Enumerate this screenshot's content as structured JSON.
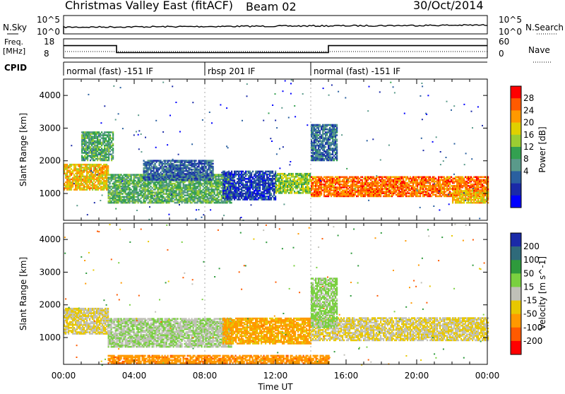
{
  "header": {
    "title": "Christmas Valley East (fitACF)",
    "beam": "Beam 02",
    "date": "30/Oct/2014"
  },
  "strips": {
    "nsky_label": "N.Sky",
    "nsky_ticks": [
      "10^5",
      "10^0"
    ],
    "nsearch_label": "N.Search",
    "freq_label": "Freq.",
    "freq_unit": "[MHz]",
    "freq_ticks": [
      "18",
      "8"
    ],
    "nave_ticks": [
      "60",
      "0"
    ],
    "nave_label": "Nave",
    "cpid_label": "CPID",
    "cpid_segments": [
      {
        "start": 0,
        "end": 8,
        "label": "normal (fast) -151 IF"
      },
      {
        "start": 8,
        "end": 14,
        "label": "rbsp 201 IF"
      },
      {
        "start": 14,
        "end": 24,
        "label": "normal (fast) -151 IF"
      }
    ],
    "freq_steps": [
      {
        "t0": 0,
        "t1": 3,
        "mhz": 15
      },
      {
        "t0": 3,
        "t1": 15,
        "mhz": 10.5
      },
      {
        "t0": 15,
        "t1": 24,
        "mhz": 15
      }
    ]
  },
  "chart_data": [
    {
      "type": "heatmap",
      "panel": "power",
      "ylabel": "Slant Range [km]",
      "xlabel": "Time UT",
      "xlim": [
        0,
        24
      ],
      "ylim": [
        180,
        4500
      ],
      "y_ticks": [
        1000,
        2000,
        3000,
        4000
      ],
      "colorbar_label": "Power [dB]",
      "colorbar_ticks": [
        "28",
        "24",
        "20",
        "16",
        "12",
        "8",
        "4"
      ],
      "colorbar_colors": [
        "#ff0000",
        "#ff5a00",
        "#ff9900",
        "#e0d000",
        "#9acd32",
        "#33a050",
        "#5a9a8a",
        "#2a60a0",
        "#1a2aa8",
        "#0000ff"
      ],
      "echo_regions": [
        {
          "t0": 0.0,
          "t1": 2.5,
          "r0": 1100,
          "r1": 1900,
          "level": 22
        },
        {
          "t0": 1.0,
          "t1": 2.8,
          "r0": 2000,
          "r1": 2900,
          "level": 14
        },
        {
          "t0": 2.5,
          "t1": 9.5,
          "r0": 700,
          "r1": 1600,
          "level": 15
        },
        {
          "t0": 4.5,
          "t1": 8.5,
          "r0": 1400,
          "r1": 2000,
          "level": 9
        },
        {
          "t0": 9.0,
          "t1": 12.0,
          "r0": 800,
          "r1": 1700,
          "level": 7
        },
        {
          "t0": 12.0,
          "t1": 14.0,
          "r0": 1000,
          "r1": 1600,
          "level": 18
        },
        {
          "t0": 14.0,
          "t1": 24.0,
          "r0": 900,
          "r1": 1500,
          "level": 26
        },
        {
          "t0": 14.0,
          "t1": 15.5,
          "r0": 2000,
          "r1": 3100,
          "level": 10
        },
        {
          "t0": 22.0,
          "t1": 24.0,
          "r0": 700,
          "r1": 1100,
          "level": 22
        }
      ]
    },
    {
      "type": "heatmap",
      "panel": "velocity",
      "ylabel": "Slant Range [km]",
      "xlabel": "Time UT",
      "xlim": [
        0,
        24
      ],
      "ylim": [
        180,
        4500
      ],
      "x_ticks": [
        "00:00",
        "04:00",
        "08:00",
        "12:00",
        "16:00",
        "20:00",
        "00:00"
      ],
      "y_ticks": [
        1000,
        2000,
        3000,
        4000
      ],
      "colorbar_label": "Velocity [m s^-1]",
      "colorbar_ticks": [
        "200",
        "100",
        "50",
        "15",
        "-15",
        "-50",
        "-100",
        "-200"
      ],
      "colorbar_colors": [
        "#1a2aa8",
        "#2f6a7a",
        "#2e9a3c",
        "#7ad040",
        "#c0c0b8",
        "#e8c800",
        "#ff9900",
        "#ff5a00",
        "#ff0000"
      ],
      "echo_regions": [
        {
          "t0": 0.0,
          "t1": 2.5,
          "r0": 1100,
          "r1": 1900,
          "velocity": 0
        },
        {
          "t0": 2.5,
          "t1": 9.5,
          "r0": 700,
          "r1": 1600,
          "velocity": 30
        },
        {
          "t0": 9.0,
          "t1": 14.0,
          "r0": 800,
          "r1": 1600,
          "velocity": -40
        },
        {
          "t0": 14.0,
          "t1": 24.0,
          "r0": 900,
          "r1": 1600,
          "velocity": 0
        },
        {
          "t0": 14.0,
          "t1": 15.5,
          "r0": 1300,
          "r1": 2800,
          "velocity": 40
        },
        {
          "t0": 2.5,
          "t1": 15.0,
          "r0": 200,
          "r1": 450,
          "velocity": -60
        }
      ]
    }
  ]
}
